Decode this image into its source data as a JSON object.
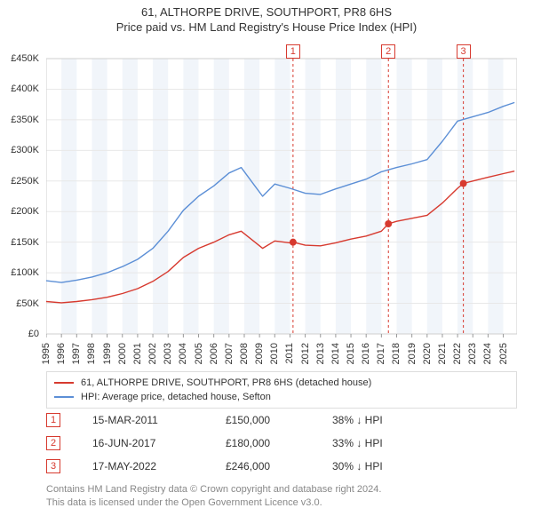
{
  "title": {
    "line1": "61, ALTHORPE DRIVE, SOUTHPORT, PR8 6HS",
    "line2": "Price paid vs. HM Land Registry's House Price Index (HPI)",
    "fontsize": 13,
    "color": "#333333"
  },
  "chart": {
    "type": "line",
    "background_color": "#ffffff",
    "grid_color": "#e8e8e8",
    "plot_border_color": "#cfcfcf",
    "x_axis": {
      "min_year": 1995,
      "max_year": 2025.9,
      "tick_years": [
        1995,
        1996,
        1997,
        1998,
        1999,
        2000,
        2001,
        2002,
        2003,
        2004,
        2005,
        2006,
        2007,
        2008,
        2009,
        2010,
        2011,
        2012,
        2013,
        2014,
        2015,
        2016,
        2017,
        2018,
        2019,
        2020,
        2021,
        2022,
        2023,
        2024,
        2025
      ],
      "label_fontsize": 11,
      "label_rotation_deg": -90
    },
    "y_axis": {
      "min": 0,
      "max": 450000,
      "tick_step": 50000,
      "tick_labels": [
        "£0",
        "£50K",
        "£100K",
        "£150K",
        "£200K",
        "£250K",
        "£300K",
        "£350K",
        "£400K",
        "£450K"
      ],
      "label_fontsize": 11
    },
    "alt_bands": {
      "color": "#f1f5fa",
      "opacity": 1.0
    },
    "series": [
      {
        "id": "hpi",
        "label": "HPI: Average price, detached house, Sefton",
        "color": "#5c8fd6",
        "line_width": 1.4,
        "points": [
          [
            1995.0,
            87000
          ],
          [
            1996.0,
            84000
          ],
          [
            1997.0,
            88000
          ],
          [
            1998.0,
            93000
          ],
          [
            1999.0,
            100000
          ],
          [
            2000.0,
            110000
          ],
          [
            2001.0,
            122000
          ],
          [
            2002.0,
            140000
          ],
          [
            2003.0,
            168000
          ],
          [
            2004.0,
            202000
          ],
          [
            2005.0,
            225000
          ],
          [
            2006.0,
            242000
          ],
          [
            2007.0,
            263000
          ],
          [
            2007.8,
            272000
          ],
          [
            2008.6,
            245000
          ],
          [
            2009.2,
            225000
          ],
          [
            2010.0,
            245000
          ],
          [
            2011.0,
            238000
          ],
          [
            2012.0,
            230000
          ],
          [
            2013.0,
            228000
          ],
          [
            2014.0,
            237000
          ],
          [
            2015.0,
            245000
          ],
          [
            2016.0,
            253000
          ],
          [
            2017.0,
            265000
          ],
          [
            2018.0,
            272000
          ],
          [
            2019.0,
            278000
          ],
          [
            2020.0,
            285000
          ],
          [
            2021.0,
            315000
          ],
          [
            2022.0,
            348000
          ],
          [
            2023.0,
            355000
          ],
          [
            2024.0,
            362000
          ],
          [
            2025.0,
            372000
          ],
          [
            2025.7,
            378000
          ]
        ]
      },
      {
        "id": "property",
        "label": "61, ALTHORPE DRIVE, SOUTHPORT, PR8 6HS (detached house)",
        "color": "#d73a2f",
        "line_width": 1.4,
        "points": [
          [
            1995.0,
            53000
          ],
          [
            1996.0,
            51000
          ],
          [
            1997.0,
            53000
          ],
          [
            1998.0,
            56000
          ],
          [
            1999.0,
            60000
          ],
          [
            2000.0,
            66000
          ],
          [
            2001.0,
            74000
          ],
          [
            2002.0,
            86000
          ],
          [
            2003.0,
            102000
          ],
          [
            2004.0,
            125000
          ],
          [
            2005.0,
            140000
          ],
          [
            2006.0,
            150000
          ],
          [
            2007.0,
            162000
          ],
          [
            2007.8,
            168000
          ],
          [
            2008.6,
            152000
          ],
          [
            2009.2,
            140000
          ],
          [
            2010.0,
            152000
          ],
          [
            2011.0,
            149000
          ],
          [
            2011.2,
            150000
          ],
          [
            2012.0,
            145000
          ],
          [
            2013.0,
            144000
          ],
          [
            2014.0,
            149000
          ],
          [
            2015.0,
            155000
          ],
          [
            2016.0,
            160000
          ],
          [
            2017.0,
            168000
          ],
          [
            2017.46,
            180000
          ],
          [
            2018.0,
            184000
          ],
          [
            2019.0,
            189000
          ],
          [
            2020.0,
            194000
          ],
          [
            2021.0,
            214000
          ],
          [
            2022.0,
            238000
          ],
          [
            2022.38,
            246000
          ],
          [
            2023.0,
            250000
          ],
          [
            2024.0,
            256000
          ],
          [
            2025.0,
            262000
          ],
          [
            2025.7,
            266000
          ]
        ]
      }
    ],
    "sale_markers": [
      {
        "n": "1",
        "year": 2011.2,
        "price": 150000,
        "line_color": "#d73a2f",
        "dot_color": "#d73a2f"
      },
      {
        "n": "2",
        "year": 2017.46,
        "price": 180000,
        "line_color": "#d73a2f",
        "dot_color": "#d73a2f"
      },
      {
        "n": "3",
        "year": 2022.38,
        "price": 246000,
        "line_color": "#d73a2f",
        "dot_color": "#d73a2f"
      }
    ],
    "marker_badge": {
      "border_color": "#d73a2f",
      "text_color": "#d73a2f",
      "bg": "#ffffff"
    }
  },
  "legend": {
    "border_color": "#dddddd",
    "fontsize": 11,
    "items": [
      {
        "color": "#d73a2f",
        "label": "61, ALTHORPE DRIVE, SOUTHPORT, PR8 6HS (detached house)"
      },
      {
        "color": "#5c8fd6",
        "label": "HPI: Average price, detached house, Sefton"
      }
    ]
  },
  "sales_table": {
    "fontsize": 12,
    "badge_border": "#d73a2f",
    "badge_text": "#d73a2f",
    "arrow_glyph": "↓",
    "rows": [
      {
        "n": "1",
        "date": "15-MAR-2011",
        "price": "£150,000",
        "pct": "38%",
        "dir": "↓",
        "suffix": "HPI"
      },
      {
        "n": "2",
        "date": "16-JUN-2017",
        "price": "£180,000",
        "pct": "33%",
        "dir": "↓",
        "suffix": "HPI"
      },
      {
        "n": "3",
        "date": "17-MAY-2022",
        "price": "£246,000",
        "pct": "30%",
        "dir": "↓",
        "suffix": "HPI"
      }
    ]
  },
  "footer": {
    "line1": "Contains HM Land Registry data © Crown copyright and database right 2024.",
    "line2": "This data is licensed under the Open Government Licence v3.0.",
    "color": "#888888",
    "fontsize": 11
  }
}
